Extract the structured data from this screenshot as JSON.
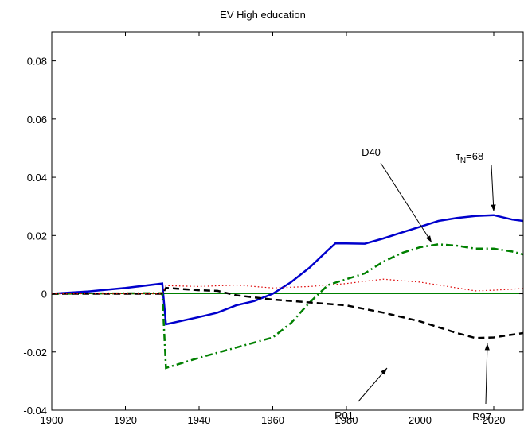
{
  "chart_data": {
    "type": "line",
    "title": "EV High education",
    "xlim": [
      1900,
      2028
    ],
    "ylim": [
      -0.04,
      0.09
    ],
    "xticks": [
      1900,
      1920,
      1940,
      1960,
      1980,
      2000,
      2020
    ],
    "yticks": [
      -0.04,
      -0.02,
      0,
      0.02,
      0.04,
      0.06,
      0.08
    ],
    "reference_line": {
      "y": 0,
      "color": "#008000"
    },
    "series": [
      {
        "name": "τN=68",
        "color": "#0000cc",
        "style": "solid",
        "x": [
          1900,
          1910,
          1920,
          1930,
          1931,
          1940,
          1945,
          1950,
          1955,
          1960,
          1965,
          1970,
          1975,
          1977,
          1980,
          1985,
          1990,
          1995,
          2000,
          2005,
          2010,
          2015,
          2020,
          2025,
          2028
        ],
        "values": [
          0,
          0.0008,
          0.002,
          0.0035,
          -0.0105,
          -0.008,
          -0.0065,
          -0.004,
          -0.0025,
          0,
          0.004,
          0.009,
          0.015,
          0.0173,
          0.0173,
          0.0172,
          0.019,
          0.021,
          0.023,
          0.025,
          0.026,
          0.0267,
          0.027,
          0.0255,
          0.025
        ]
      },
      {
        "name": "D40",
        "color": "#008000",
        "style": "dashdot",
        "x": [
          1900,
          1930,
          1931,
          1940,
          1950,
          1960,
          1965,
          1970,
          1975,
          1980,
          1985,
          1990,
          1995,
          2000,
          2005,
          2010,
          2015,
          2020,
          2025,
          2028
        ],
        "values": [
          0,
          0.0002,
          -0.0255,
          -0.022,
          -0.0185,
          -0.015,
          -0.01,
          -0.003,
          0.003,
          0.005,
          0.007,
          0.011,
          0.014,
          0.016,
          0.017,
          0.0165,
          0.0155,
          0.0155,
          0.0145,
          0.0135
        ]
      },
      {
        "name": "R01",
        "color": "#000000",
        "style": "dashed",
        "x": [
          1900,
          1930,
          1931,
          1940,
          1945,
          1950,
          1960,
          1970,
          1980,
          1990,
          2000,
          2010,
          2015,
          2020,
          2028
        ],
        "values": [
          0,
          0,
          0.002,
          0.0012,
          0.001,
          -0.0005,
          -0.002,
          -0.003,
          -0.004,
          -0.0065,
          -0.0095,
          -0.0135,
          -0.0152,
          -0.015,
          -0.0135
        ]
      },
      {
        "name": "R97",
        "color": "#dd0000",
        "style": "dotted",
        "x": [
          1900,
          1930,
          1931,
          1940,
          1950,
          1960,
          1970,
          1980,
          1990,
          2000,
          2010,
          2015,
          2020,
          2028
        ],
        "values": [
          0,
          0,
          0.0028,
          0.0025,
          0.003,
          0.002,
          0.0025,
          0.0035,
          0.005,
          0.004,
          0.002,
          0.001,
          0.0012,
          0.0018
        ]
      }
    ],
    "annotations": [
      {
        "text": "τ",
        "subscript": "N",
        "suffix": "=68"
      },
      {
        "text": "D40"
      },
      {
        "text": "R01"
      },
      {
        "text": "R97"
      }
    ]
  }
}
